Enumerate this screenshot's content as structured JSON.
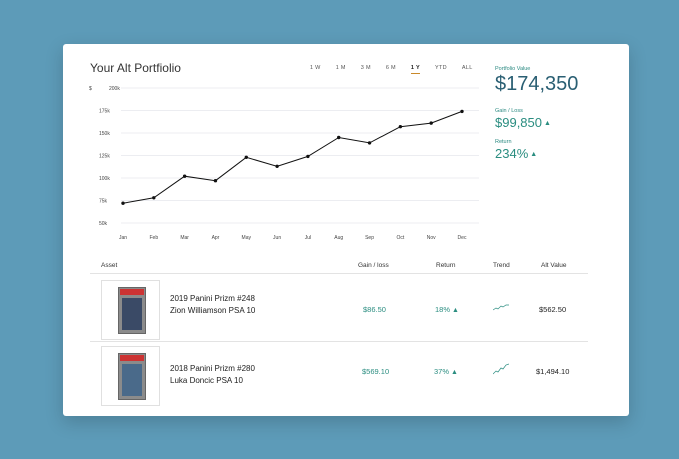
{
  "portfolio": {
    "title": "Your Alt Portfiolio",
    "tabs": [
      "1 W",
      "1 M",
      "3 M",
      "6 M",
      "1 Y",
      "YTD",
      "ALL"
    ],
    "active_tab": "1 Y"
  },
  "stats": {
    "portfolio_value_label": "Portfolio Value",
    "portfolio_value": "$174,350",
    "gain_loss_label": "Gain / Loss",
    "gain_loss": "$99,850",
    "return_label": "Return",
    "return_value": "234%"
  },
  "chart_data": {
    "type": "line",
    "categories": [
      "Jan",
      "Feb",
      "Mar",
      "Apr",
      "May",
      "Jun",
      "Jul",
      "Aug",
      "Sep",
      "Oct",
      "Nov",
      "Dec"
    ],
    "series": [
      {
        "values": [
          72,
          78,
          102,
          97,
          123,
          113,
          124,
          145,
          139,
          157,
          161,
          174
        ]
      }
    ],
    "y_unit": "$",
    "y_ticks": [
      "200k",
      "175k",
      "150k",
      "125k",
      "100k",
      "75k",
      "50k"
    ],
    "y_tick_values": [
      200,
      175,
      150,
      125,
      100,
      75,
      50
    ],
    "ylim": [
      50,
      200
    ],
    "grid": true,
    "line_color": "#111111",
    "grid_color": "#d9dce3"
  },
  "table": {
    "headers": {
      "asset": "Asset",
      "gain": "Gain / loss",
      "return": "Return",
      "trend": "Trend",
      "alt_value": "Alt Value"
    },
    "rows": [
      {
        "line1": "2019 Panini Prizm #248",
        "line2": "Zion Williamson PSA 10",
        "gain": "$86.50",
        "return": "18%",
        "alt_value": "$562.50"
      },
      {
        "line1": "2018 Panini Prizm #280",
        "line2": "Luka Doncic PSA 10",
        "gain": "$569.10",
        "return": "37%",
        "alt_value": "$1,494.10"
      }
    ]
  },
  "colors": {
    "accent": "#2a8d80",
    "background": "#5d9bb8",
    "active_tab_underline": "#c9892a"
  }
}
